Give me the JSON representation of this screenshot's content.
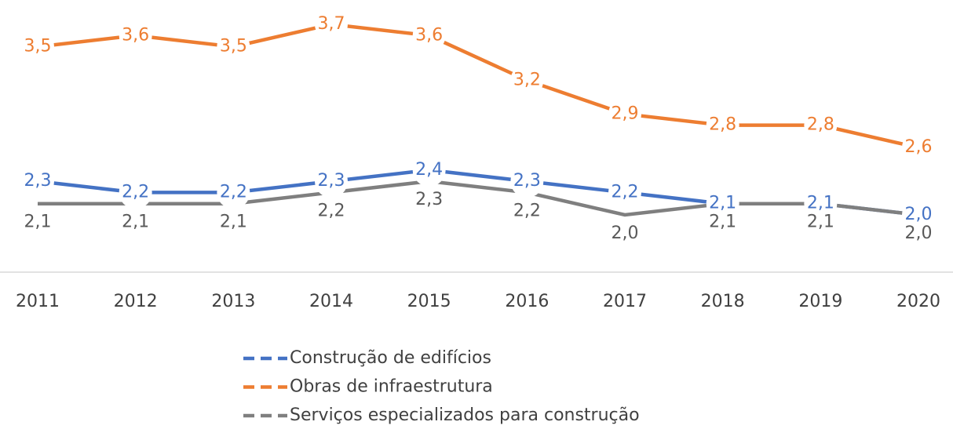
{
  "chart_data": {
    "type": "line",
    "categories": [
      "2011",
      "2012",
      "2013",
      "2014",
      "2015",
      "2016",
      "2017",
      "2018",
      "2019",
      "2020"
    ],
    "series": [
      {
        "name": "Construção de edifícios",
        "color": "#4472c4",
        "values": [
          2.3,
          2.2,
          2.2,
          2.3,
          2.4,
          2.3,
          2.2,
          2.1,
          2.1,
          2.0
        ],
        "value_labels": [
          "2,3",
          "2,2",
          "2,2",
          "2,3",
          "2,4",
          "2,3",
          "2,2",
          "2,1",
          "2,1",
          "2,0"
        ]
      },
      {
        "name": "Obras de infraestrutura",
        "color": "#ed7d31",
        "values": [
          3.5,
          3.6,
          3.5,
          3.7,
          3.6,
          3.2,
          2.9,
          2.8,
          2.8,
          2.6
        ],
        "value_labels": [
          "3,5",
          "3,6",
          "3,5",
          "3,7",
          "3,6",
          "3,2",
          "2,9",
          "2,8",
          "2,8",
          "2,6"
        ]
      },
      {
        "name": "Serviços especializados para construção",
        "color": "#7f7f7f",
        "values": [
          2.1,
          2.1,
          2.1,
          2.2,
          2.3,
          2.2,
          2.0,
          2.1,
          2.1,
          2.0
        ],
        "value_labels": [
          "2,1",
          "2,1",
          "2,1",
          "2,2",
          "2,3",
          "2,2",
          "2,0",
          "2,1",
          "2,1",
          "2,0"
        ]
      }
    ]
  }
}
